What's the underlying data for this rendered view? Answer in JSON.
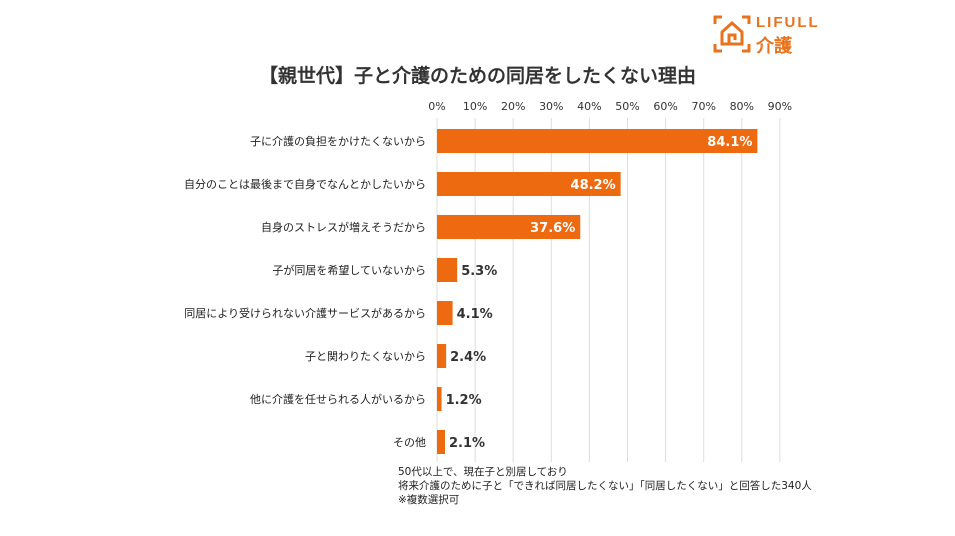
{
  "logo": {
    "brand": "LIFULL",
    "sub": "介護"
  },
  "chart_data": {
    "type": "bar",
    "orientation": "horizontal",
    "title": "【親世代】子と介護のための同居をしたくない理由",
    "categories": [
      "子に介護の負担をかけたくないから",
      "自分のことは最後まで自身でなんとかしたいから",
      "自身のストレスが増えそうだから",
      "子が同居を希望していないから",
      "同居により受けられない介護サービスがあるから",
      "子と関わりたくないから",
      "他に介護を任せられる人がいるから",
      "その他"
    ],
    "values": [
      84.1,
      48.2,
      37.6,
      5.3,
      4.1,
      2.4,
      1.2,
      2.1
    ],
    "data_labels": [
      "84.1%",
      "48.2%",
      "37.6%",
      "5.3%",
      "4.1%",
      "2.4%",
      "1.2%",
      "2.1%"
    ],
    "xlim": [
      0,
      90
    ],
    "x_ticks": [
      "0%",
      "10%",
      "20%",
      "30%",
      "40%",
      "50%",
      "60%",
      "70%",
      "80%",
      "90%"
    ],
    "axis_position": "top",
    "grid": true,
    "bar_color": "#EE6A10",
    "grid_color": "#DDDDDD"
  },
  "notes": [
    "50代以上で、現在子と別居しており",
    "将来介護のために子と「できれば同居したくない」「同居したくない」と回答した340人",
    "※複数選択可"
  ]
}
